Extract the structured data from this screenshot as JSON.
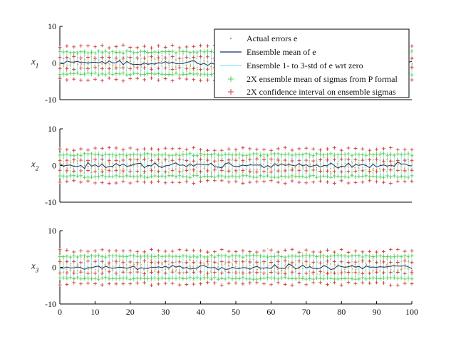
{
  "chart_data": [
    {
      "type": "scatter",
      "ylabel_base": "x",
      "ylabel_sub": "1",
      "xlim": [
        0,
        100
      ],
      "ylim": [
        -10,
        10
      ],
      "yticks": [
        10,
        0,
        -10
      ],
      "xticks": [],
      "grid": false,
      "legend_position": "top-right",
      "series": [
        {
          "name": "Actual errors e",
          "marker": ".",
          "color": "#e0a050"
        },
        {
          "name": "Ensemble mean of e",
          "marker": "line",
          "color": "#1f2a66"
        },
        {
          "name": "Ensemble 1- to 3-std of e wrt zero",
          "marker": "line",
          "color": "#7fe6e6"
        },
        {
          "name": "2X ensemble mean of sigmas from P formal",
          "marker": "+",
          "color": "#4fcf4f"
        },
        {
          "name": "2X confidence interval on ensemble sigmas",
          "marker": "+",
          "color": "#d03a3a"
        }
      ],
      "approx_values": {
        "two_sigma_mean": 3.0,
        "ci_upper": 4.5,
        "ci_lower": 1.5,
        "std_band_max": 4.0,
        "mean_range": [
          -1,
          1
        ]
      }
    },
    {
      "type": "scatter",
      "ylabel_base": "x",
      "ylabel_sub": "2",
      "xlim": [
        0,
        100
      ],
      "ylim": [
        -10,
        10
      ],
      "yticks": [
        10,
        0,
        -10
      ],
      "xticks": [],
      "grid": false,
      "approx_values": {
        "two_sigma_mean": 3.0,
        "ci_upper": 4.5,
        "ci_lower": 1.5,
        "std_band_max": 4.0,
        "mean_range": [
          -1,
          1
        ]
      }
    },
    {
      "type": "scatter",
      "ylabel_base": "x",
      "ylabel_sub": "3",
      "xlim": [
        0,
        100
      ],
      "ylim": [
        -10,
        10
      ],
      "yticks": [
        10,
        0,
        -10
      ],
      "xticks": [
        0,
        10,
        20,
        30,
        40,
        50,
        60,
        70,
        80,
        90,
        100
      ],
      "grid": false,
      "approx_values": {
        "two_sigma_mean": 3.0,
        "ci_upper": 4.5,
        "ci_lower": 1.5,
        "std_band_max": 4.0,
        "mean_range": [
          -1,
          1
        ]
      }
    }
  ],
  "colors": {
    "actual": "#e0a050",
    "mean": "#1f2a66",
    "std_band": "#7fe6e6",
    "sigma_mean": "#4fcf4f",
    "ci": "#d03a3a",
    "axis": "#000000"
  }
}
